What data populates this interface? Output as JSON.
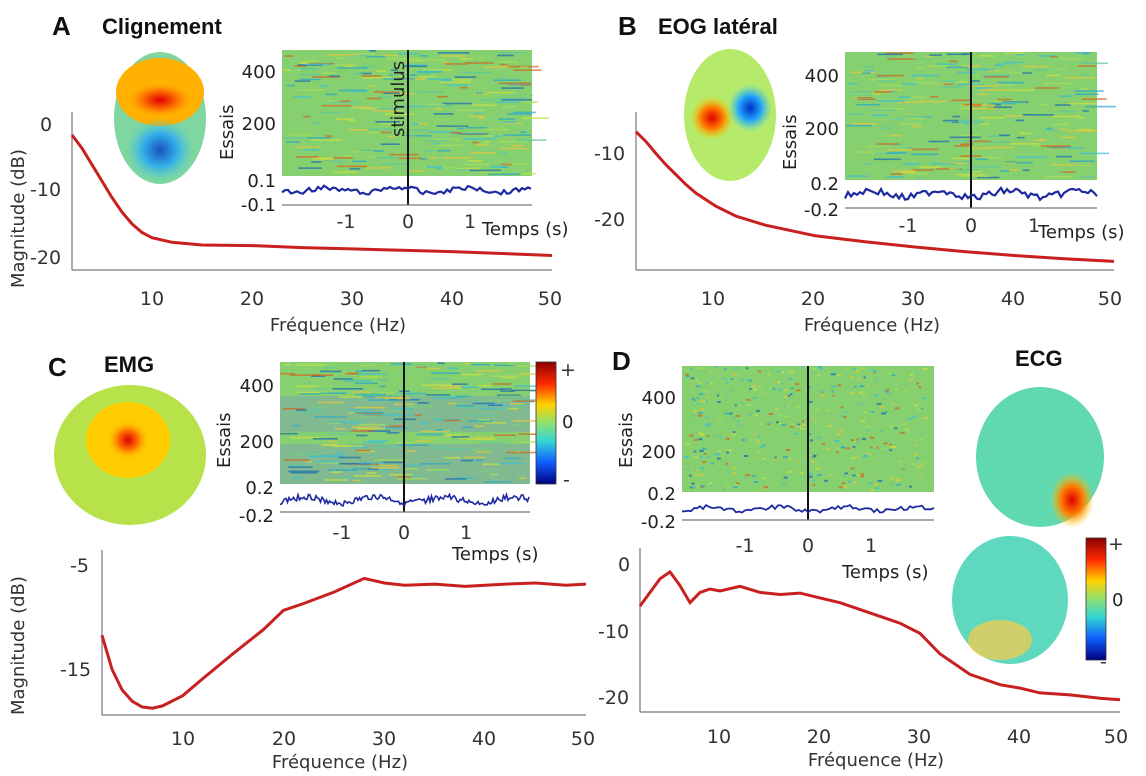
{
  "chart_data": [
    {
      "panel": "A",
      "title": "Clignement",
      "type": "line",
      "xlabel": "Fréquence (Hz)",
      "ylabel": "Magnitude (dB)",
      "xlim": [
        2,
        50
      ],
      "ylim": [
        -23,
        1
      ],
      "x_ticks": [
        "10",
        "20",
        "30",
        "40",
        "50"
      ],
      "y_ticks": [
        "0",
        "-10",
        "-20"
      ],
      "series": [
        {
          "color": "#c8201e",
          "x": [
            2,
            3,
            4,
            5,
            6,
            7,
            8,
            9,
            10,
            12,
            15,
            20,
            25,
            30,
            35,
            40,
            45,
            50
          ],
          "y": [
            -2.5,
            -4.5,
            -7,
            -9.5,
            -12,
            -14.2,
            -16,
            -17.3,
            -18.1,
            -18.8,
            -19.2,
            -19.3,
            -19.6,
            -19.8,
            -20,
            -20.2,
            -20.5,
            -20.8
          ]
        }
      ],
      "topomap": "frontal-positive",
      "inset": {
        "type": "heatmap",
        "ylabel": "Essais",
        "y_ticks": [
          "400",
          "200"
        ],
        "x_ticks": [
          "-1",
          "0",
          "1"
        ],
        "xlabel": "Temps (s)",
        "erp_ticks": [
          "0.1",
          "-0.1"
        ],
        "annotation": "stimulus"
      }
    },
    {
      "panel": "B",
      "title": "EOG latéral",
      "type": "line",
      "xlabel": "Fréquence (Hz)",
      "ylabel": "",
      "xlim": [
        2,
        50
      ],
      "ylim": [
        -28,
        -4
      ],
      "x_ticks": [
        "10",
        "20",
        "30",
        "40",
        "50"
      ],
      "y_ticks": [
        "-10",
        "-20"
      ],
      "series": [
        {
          "color": "#c8201e",
          "x": [
            2,
            3,
            4,
            5,
            6,
            7,
            8,
            10,
            12,
            15,
            20,
            25,
            30,
            35,
            40,
            45,
            50
          ],
          "y": [
            -7,
            -8.5,
            -10.3,
            -12,
            -13.5,
            -15,
            -16.3,
            -18.3,
            -19.8,
            -21.2,
            -22.8,
            -23.7,
            -24.5,
            -25.2,
            -25.8,
            -26.3,
            -26.7
          ]
        }
      ],
      "topomap": "lateral-dipole",
      "inset": {
        "type": "heatmap",
        "ylabel": "Essais",
        "y_ticks": [
          "400",
          "200"
        ],
        "x_ticks": [
          "-1",
          "0",
          "1"
        ],
        "xlabel": "Temps (s)",
        "erp_ticks": [
          "0.2",
          "-0.2"
        ]
      }
    },
    {
      "panel": "C",
      "title": "EMG",
      "type": "line",
      "xlabel": "Fréquence (Hz)",
      "ylabel": "Magnitude (dB)",
      "xlim": [
        2,
        50
      ],
      "ylim": [
        -18,
        -3.5
      ],
      "x_ticks": [
        "10",
        "20",
        "30",
        "40",
        "50"
      ],
      "y_ticks": [
        "-5",
        "-15"
      ],
      "series": [
        {
          "color": "#c8201e",
          "x": [
            2,
            3,
            4,
            5,
            6,
            7,
            8,
            10,
            12,
            15,
            18,
            20,
            22,
            25,
            28,
            30,
            32,
            35,
            38,
            40,
            42,
            45,
            48,
            50
          ],
          "y": [
            -11,
            -14,
            -15.8,
            -16.8,
            -17.3,
            -17.4,
            -17.2,
            -16.3,
            -14.8,
            -12.6,
            -10.5,
            -8.8,
            -8.2,
            -7.2,
            -6,
            -6.4,
            -6.6,
            -6.5,
            -6.7,
            -6.6,
            -6.5,
            -6.4,
            -6.6,
            -6.5
          ]
        }
      ],
      "topomap": "temporal-positive",
      "inset": {
        "type": "heatmap",
        "ylabel": "Essais",
        "y_ticks": [
          "400",
          "200"
        ],
        "x_ticks": [
          "-1",
          "0",
          "1"
        ],
        "xlabel": "Temps (s)",
        "erp_ticks": [
          "0.2",
          "-0.2"
        ],
        "colorbar_ticks": [
          "+",
          "0",
          "-"
        ]
      }
    },
    {
      "panel": "D",
      "title": "ECG",
      "type": "line",
      "xlabel": "Fréquence (Hz)",
      "ylabel": "",
      "xlim": [
        2,
        50
      ],
      "ylim": [
        -22,
        2
      ],
      "x_ticks": [
        "10",
        "20",
        "30",
        "40",
        "50"
      ],
      "y_ticks": [
        "0",
        "-10",
        "-20"
      ],
      "series": [
        {
          "color": "#c8201e",
          "x": [
            2,
            3,
            4,
            5,
            6,
            7,
            8,
            9,
            10,
            12,
            14,
            16,
            18,
            20,
            22,
            25,
            28,
            30,
            32,
            35,
            38,
            40,
            42,
            45,
            48,
            50
          ],
          "y": [
            -6.5,
            -4.5,
            -2.5,
            -1.5,
            -3.5,
            -6,
            -4.5,
            -4,
            -4.3,
            -3.6,
            -4.5,
            -4.8,
            -4.6,
            -5.3,
            -6,
            -7.5,
            -9,
            -10.5,
            -13.5,
            -16.5,
            -18,
            -18.5,
            -19.2,
            -19.5,
            -20,
            -20.2
          ]
        }
      ],
      "topomap": "neck-positive",
      "inset": {
        "type": "heatmap",
        "ylabel": "Essais",
        "y_ticks": [
          "400",
          "200"
        ],
        "x_ticks": [
          "-1",
          "0",
          "1"
        ],
        "xlabel": "Temps (s)",
        "erp_ticks": [
          "0.2",
          "-0.2"
        ],
        "colorbar_ticks": [
          "+",
          "0",
          "-"
        ]
      }
    }
  ],
  "colors": {
    "psd_line": "#c8201e",
    "erp_line": "#1e2aa0",
    "heatmap_base": "#7fd16a"
  }
}
